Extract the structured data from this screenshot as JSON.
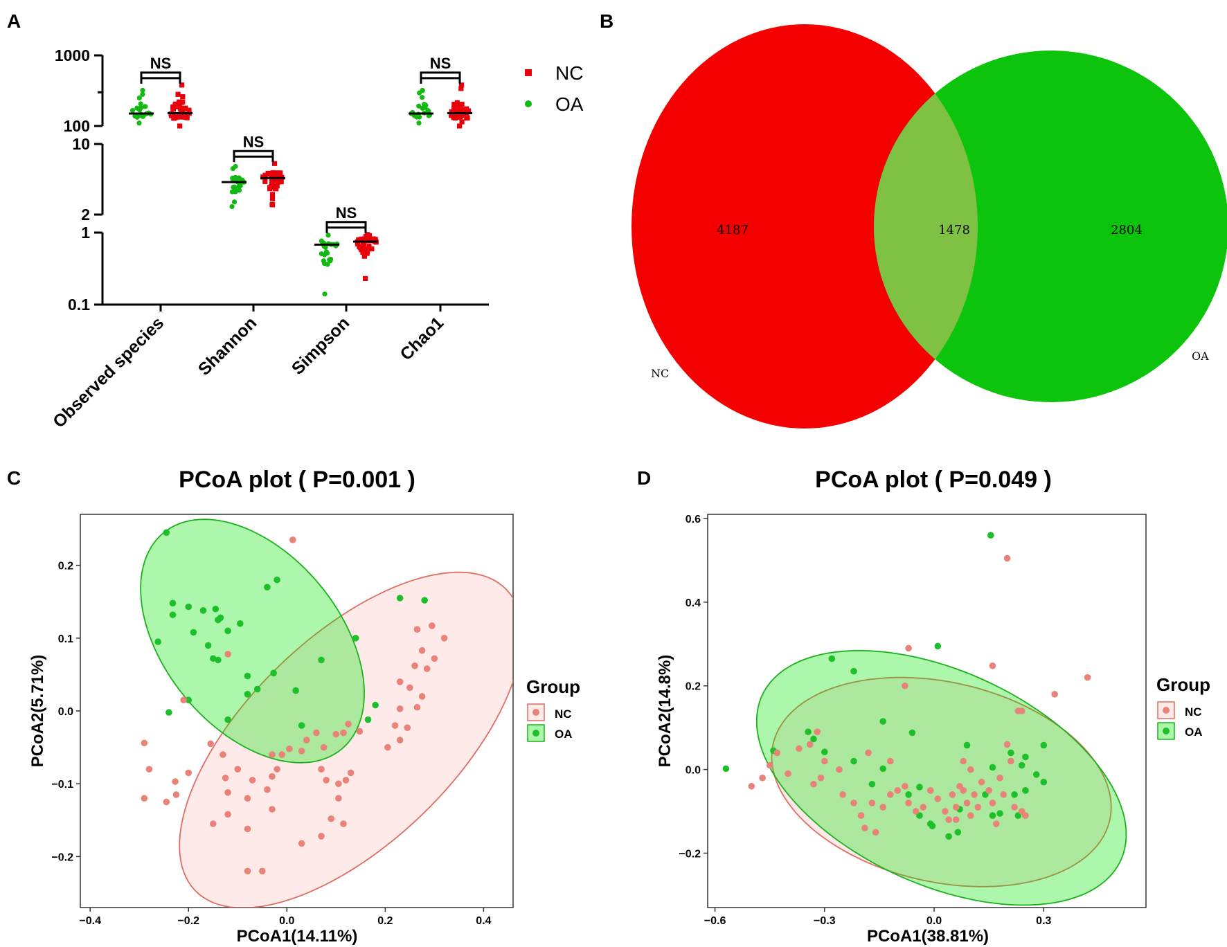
{
  "panels": {
    "a": "A",
    "b": "B",
    "c": "C",
    "d": "D"
  },
  "colors": {
    "nc_red": "#e8000b",
    "oa_green": "#13b813",
    "venn_red": "#f40000",
    "venn_green": "#0cc40c",
    "venn_overlap": "#7fc243",
    "pcoa_nc": "#e98278",
    "pcoa_oa": "#1dbf2a"
  },
  "chart_data": [
    {
      "type": "scatter",
      "panel": "A",
      "title": "",
      "categories": [
        "Observed species",
        "Shannon",
        "Simpson",
        "Chao1"
      ],
      "yaxis_segments": [
        {
          "range": [
            100,
            1000
          ],
          "ticks": [
            "1000",
            "100"
          ]
        },
        {
          "range": [
            2,
            10
          ],
          "ticks": [
            "10",
            "2"
          ]
        },
        {
          "range": [
            0.1,
            1
          ],
          "ticks": [
            "1",
            "0.1"
          ]
        }
      ],
      "series": [
        {
          "name": "OA",
          "marker": "circle",
          "medians": [
            150,
            4.2,
            0.68,
            150
          ],
          "ranges": [
            [
              110,
              320
            ],
            [
              2.4,
              6.0
            ],
            [
              0.14,
              0.92
            ],
            [
              110,
              320
            ]
          ]
        },
        {
          "name": "NC",
          "marker": "square",
          "medians": [
            152,
            4.6,
            0.75,
            152
          ],
          "ranges": [
            [
              100,
              380
            ],
            [
              2.5,
              6.4
            ],
            [
              0.23,
              0.94
            ],
            [
              100,
              380
            ]
          ]
        }
      ],
      "significance": [
        "NS",
        "NS",
        "NS",
        "NS"
      ],
      "legend": [
        "NC",
        "OA"
      ]
    },
    {
      "type": "venn",
      "panel": "B",
      "sets": [
        {
          "name": "NC",
          "only": "4187"
        },
        {
          "name": "OA",
          "only": "2804"
        }
      ],
      "shared": "1478"
    },
    {
      "type": "scatter",
      "panel": "C",
      "title": "PCoA plot ( P=0.001 )",
      "xlabel": "PCoA1(14.11%)",
      "ylabel": "PCoA2(5.71%)",
      "xlim": [
        -0.42,
        0.46
      ],
      "ylim": [
        -0.27,
        0.27
      ],
      "xticks": [
        "−0.4",
        "−0.2",
        "0.0",
        "0.2",
        "0.4"
      ],
      "yticks": [
        "0.2",
        "0.1",
        "0.0",
        "−0.1",
        "−0.2"
      ],
      "legend_title": "Group",
      "legend": [
        "NC",
        "OA"
      ],
      "ellipses": [
        {
          "group": "NC",
          "cx": 0.13,
          "cy": -0.04,
          "rx": 0.385,
          "ry": 0.162,
          "angle_deg": 28
        },
        {
          "group": "OA",
          "cx": -0.07,
          "cy": 0.096,
          "rx": 0.245,
          "ry": 0.14,
          "angle_deg": -27
        }
      ],
      "series": [
        {
          "name": "OA",
          "points": [
            [
              -0.245,
              0.245
            ],
            [
              -0.02,
              0.18
            ],
            [
              -0.04,
              0.17
            ],
            [
              -0.232,
              0.148
            ],
            [
              -0.2,
              0.143
            ],
            [
              -0.17,
              0.138
            ],
            [
              -0.145,
              0.14
            ],
            [
              -0.232,
              0.132
            ],
            [
              -0.14,
              0.125
            ],
            [
              -0.095,
              0.12
            ],
            [
              -0.135,
              0.128
            ],
            [
              -0.12,
              0.11
            ],
            [
              -0.262,
              0.095
            ],
            [
              -0.19,
              0.108
            ],
            [
              -0.16,
              0.09
            ],
            [
              -0.15,
              0.072
            ],
            [
              -0.14,
              0.07
            ],
            [
              0.14,
              0.1
            ],
            [
              0.07,
              0.07
            ],
            [
              -0.08,
              0.048
            ],
            [
              -0.027,
              0.052
            ],
            [
              -0.06,
              0.03
            ],
            [
              -0.08,
              0.023
            ],
            [
              0.018,
              0.028
            ],
            [
              -0.2,
              0.015
            ],
            [
              -0.24,
              -0.002
            ],
            [
              -0.12,
              -0.012
            ],
            [
              0.03,
              -0.02
            ],
            [
              0.165,
              -0.012
            ],
            [
              0.18,
              0.008
            ],
            [
              0.23,
              0.155
            ],
            [
              0.28,
              0.152
            ]
          ]
        },
        {
          "name": "NC",
          "points": [
            [
              0.012,
              0.235
            ],
            [
              0.295,
              0.117
            ],
            [
              0.32,
              0.1
            ],
            [
              0.265,
              0.112
            ],
            [
              0.275,
              0.083
            ],
            [
              0.3,
              0.072
            ],
            [
              0.26,
              0.062
            ],
            [
              0.285,
              0.058
            ],
            [
              0.23,
              0.04
            ],
            [
              0.25,
              0.032
            ],
            [
              0.275,
              0.02
            ],
            [
              0.265,
              0.005
            ],
            [
              0.23,
              0.003
            ],
            [
              0.22,
              -0.02
            ],
            [
              0.245,
              -0.023
            ],
            [
              0.23,
              -0.04
            ],
            [
              0.205,
              -0.05
            ],
            [
              0.1,
              -0.032
            ],
            [
              0.115,
              -0.03
            ],
            [
              0.125,
              -0.018
            ],
            [
              0.148,
              -0.028
            ],
            [
              0.075,
              -0.05
            ],
            [
              0.03,
              -0.055
            ],
            [
              0.005,
              -0.052
            ],
            [
              -0.03,
              -0.06
            ],
            [
              0.07,
              -0.08
            ],
            [
              0.13,
              -0.085
            ],
            [
              0.12,
              -0.095
            ],
            [
              0.105,
              -0.1
            ],
            [
              0.08,
              -0.095
            ],
            [
              0.105,
              -0.12
            ],
            [
              0.09,
              -0.148
            ],
            [
              0.115,
              -0.155
            ],
            [
              -0.02,
              -0.08
            ],
            [
              -0.03,
              -0.09
            ],
            [
              -0.1,
              -0.08
            ],
            [
              -0.13,
              -0.06
            ],
            [
              -0.125,
              -0.092
            ],
            [
              -0.12,
              -0.112
            ],
            [
              -0.07,
              -0.095
            ],
            [
              -0.04,
              -0.108
            ],
            [
              -0.03,
              -0.135
            ],
            [
              -0.08,
              -0.12
            ],
            [
              -0.12,
              -0.142
            ],
            [
              -0.08,
              -0.162
            ],
            [
              -0.15,
              -0.155
            ],
            [
              -0.2,
              -0.085
            ],
            [
              -0.227,
              -0.097
            ],
            [
              -0.225,
              -0.115
            ],
            [
              -0.245,
              -0.125
            ],
            [
              -0.28,
              -0.08
            ],
            [
              -0.29,
              -0.044
            ],
            [
              -0.29,
              -0.12
            ],
            [
              0.03,
              -0.182
            ],
            [
              0.07,
              -0.172
            ],
            [
              -0.08,
              -0.22
            ],
            [
              -0.05,
              -0.22
            ],
            [
              -0.21,
              0.015
            ],
            [
              -0.12,
              0.078
            ],
            [
              -0.155,
              -0.045
            ],
            [
              0.06,
              -0.03
            ],
            [
              -0.01,
              -0.06
            ],
            [
              0.04,
              -0.04
            ]
          ]
        }
      ]
    },
    {
      "type": "scatter",
      "panel": "D",
      "title": "PCoA plot ( P=0.049 )",
      "xlabel": "PCoA1(38.81%)",
      "ylabel": "PCoA2(14.8%)",
      "xlim": [
        -0.62,
        0.58
      ],
      "ylim": [
        -0.33,
        0.61
      ],
      "xticks": [
        "−0.6",
        "−0.3",
        "0.0",
        "0.3"
      ],
      "yticks": [
        "0.6",
        "0.4",
        "0.2",
        "0.0",
        "−0.2"
      ],
      "legend_title": "Group",
      "legend": [
        "NC",
        "OA"
      ],
      "ellipses": [
        {
          "group": "NC",
          "cx": 0.02,
          "cy": -0.03,
          "rx": 0.47,
          "ry": 0.24,
          "angle_deg": -10
        },
        {
          "group": "OA",
          "cx": 0.02,
          "cy": -0.02,
          "rx": 0.53,
          "ry": 0.26,
          "angle_deg": -20
        }
      ],
      "series": [
        {
          "name": "OA",
          "points": [
            [
              0.155,
              0.56
            ],
            [
              0.01,
              0.295
            ],
            [
              -0.28,
              0.265
            ],
            [
              -0.22,
              0.235
            ],
            [
              -0.57,
              0.002
            ],
            [
              -0.44,
              0.045
            ],
            [
              -0.345,
              0.09
            ],
            [
              -0.33,
              0.073
            ],
            [
              -0.3,
              0.042
            ],
            [
              -0.22,
              0.02
            ],
            [
              -0.14,
              0.115
            ],
            [
              -0.06,
              0.088
            ],
            [
              -0.14,
              0.002
            ],
            [
              -0.17,
              -0.035
            ],
            [
              -0.07,
              -0.06
            ],
            [
              -0.04,
              -0.042
            ],
            [
              -0.04,
              -0.11
            ],
            [
              -0.01,
              -0.13
            ],
            [
              -0.005,
              -0.135
            ],
            [
              0.04,
              -0.16
            ],
            [
              0.065,
              -0.15
            ],
            [
              0.07,
              -0.095
            ],
            [
              0.09,
              0.058
            ],
            [
              0.16,
              0.005
            ],
            [
              0.21,
              0.04
            ],
            [
              0.24,
              0.01
            ],
            [
              0.25,
              -0.05
            ],
            [
              0.28,
              -0.012
            ],
            [
              0.3,
              0.058
            ],
            [
              0.3,
              -0.03
            ],
            [
              0.22,
              -0.06
            ],
            [
              0.25,
              0.03
            ],
            [
              0.18,
              -0.105
            ],
            [
              0.23,
              -0.11
            ],
            [
              0.16,
              -0.11
            ],
            [
              0.14,
              -0.06
            ]
          ]
        },
        {
          "name": "NC",
          "points": [
            [
              0.2,
              0.505
            ],
            [
              0.42,
              0.22
            ],
            [
              0.33,
              0.18
            ],
            [
              0.16,
              0.248
            ],
            [
              -0.07,
              0.29
            ],
            [
              -0.08,
              0.2
            ],
            [
              -0.5,
              -0.04
            ],
            [
              -0.47,
              -0.02
            ],
            [
              -0.45,
              0.01
            ],
            [
              -0.43,
              0.04
            ],
            [
              -0.4,
              -0.01
            ],
            [
              -0.37,
              0.05
            ],
            [
              -0.34,
              0.06
            ],
            [
              -0.32,
              0.09
            ],
            [
              -0.31,
              -0.02
            ],
            [
              -0.33,
              -0.035
            ],
            [
              -0.3,
              0.02
            ],
            [
              -0.26,
              0.0
            ],
            [
              -0.25,
              -0.06
            ],
            [
              -0.22,
              -0.08
            ],
            [
              -0.2,
              -0.11
            ],
            [
              -0.19,
              -0.14
            ],
            [
              -0.17,
              -0.08
            ],
            [
              -0.16,
              -0.15
            ],
            [
              -0.14,
              -0.09
            ],
            [
              -0.12,
              -0.06
            ],
            [
              -0.1,
              -0.05
            ],
            [
              -0.08,
              -0.04
            ],
            [
              -0.07,
              -0.08
            ],
            [
              -0.05,
              -0.1
            ],
            [
              -0.03,
              -0.09
            ],
            [
              -0.01,
              -0.05
            ],
            [
              0.01,
              -0.07
            ],
            [
              0.03,
              -0.1
            ],
            [
              0.04,
              -0.12
            ],
            [
              0.05,
              -0.06
            ],
            [
              0.06,
              -0.09
            ],
            [
              0.07,
              -0.04
            ],
            [
              0.08,
              -0.05
            ],
            [
              0.09,
              -0.08
            ],
            [
              0.1,
              -0.11
            ],
            [
              0.11,
              -0.06
            ],
            [
              0.12,
              -0.09
            ],
            [
              0.13,
              -0.03
            ],
            [
              0.15,
              -0.05
            ],
            [
              0.16,
              -0.08
            ],
            [
              0.17,
              -0.13
            ],
            [
              0.18,
              -0.02
            ],
            [
              0.19,
              -0.06
            ],
            [
              0.2,
              0.06
            ],
            [
              0.21,
              0.02
            ],
            [
              0.22,
              -0.09
            ],
            [
              0.23,
              0.14
            ],
            [
              0.24,
              0.14
            ],
            [
              0.25,
              -0.11
            ],
            [
              0.24,
              -0.1
            ],
            [
              0.1,
              0.0
            ],
            [
              0.08,
              0.02
            ],
            [
              0.06,
              -0.12
            ],
            [
              -0.18,
              0.04
            ],
            [
              -0.12,
              0.02
            ]
          ]
        }
      ]
    }
  ]
}
